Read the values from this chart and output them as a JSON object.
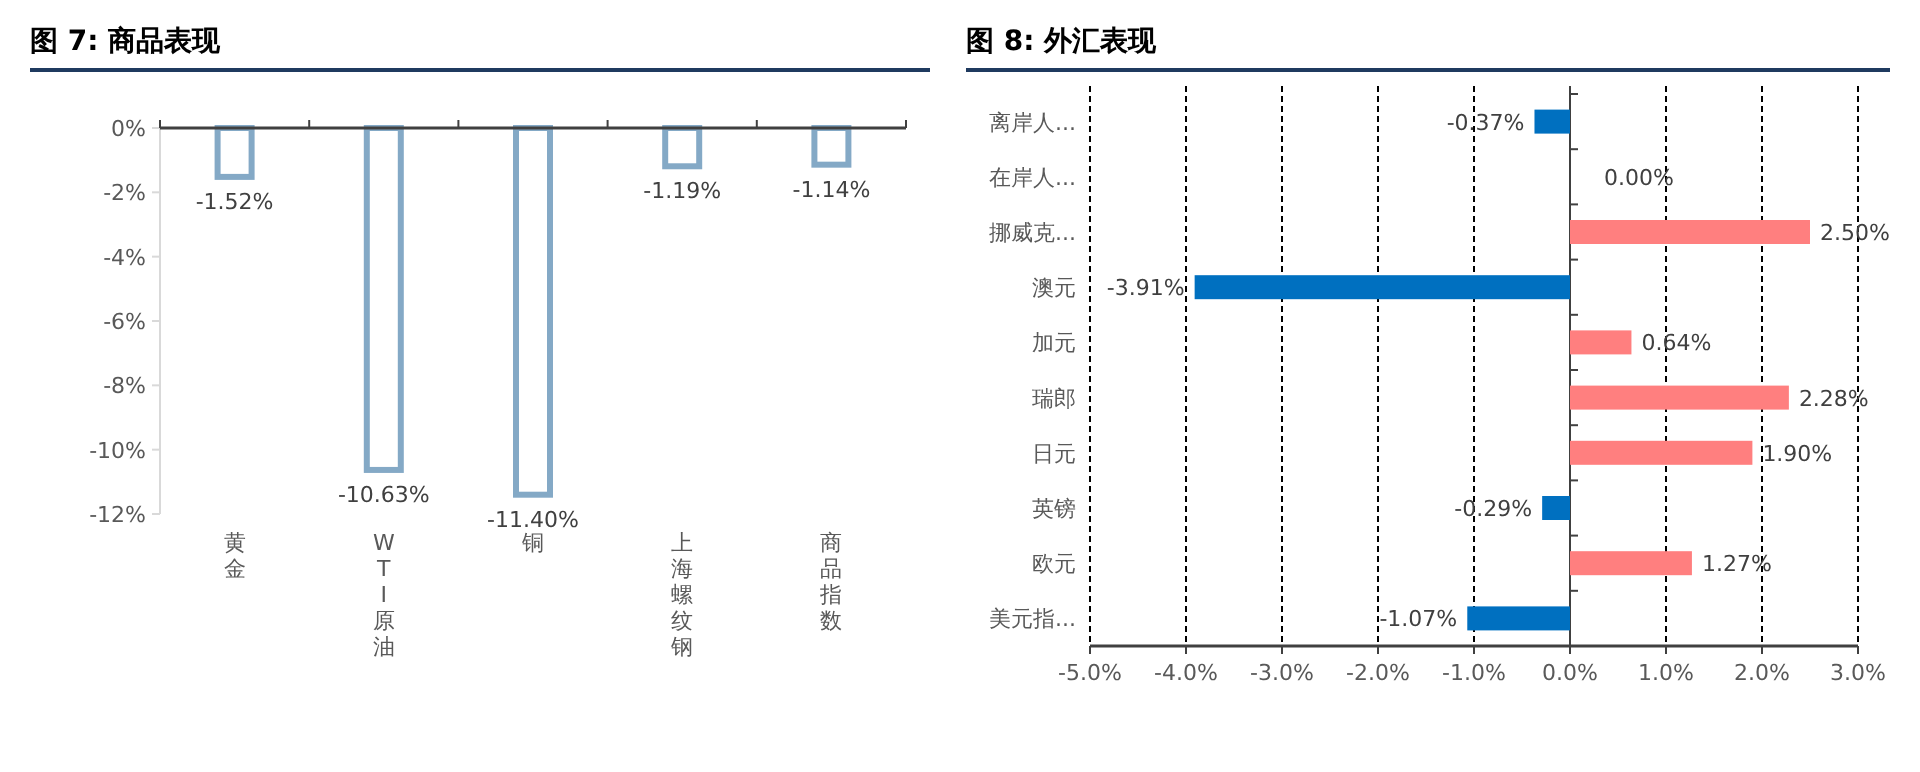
{
  "chart_data": [
    {
      "type": "bar",
      "title": "图 7: 商品表现",
      "categories": [
        "黄金",
        "WTI原油",
        "铜",
        "上海螺纹钢",
        "商品指数"
      ],
      "values": [
        -1.52,
        -10.63,
        -11.4,
        -1.19,
        -1.14
      ],
      "value_labels": [
        "-1.52%",
        "-10.63%",
        "-11.40%",
        "-1.19%",
        "-1.14%"
      ],
      "color": "#84a9c6",
      "ylim": [
        -12,
        0
      ],
      "yticks": [
        {
          "value": 0,
          "label": "0%"
        },
        {
          "value": -2,
          "label": "-2%"
        },
        {
          "value": -4,
          "label": "-4%"
        },
        {
          "value": -6,
          "label": "-6%"
        },
        {
          "value": -8,
          "label": "-8%"
        },
        {
          "value": -10,
          "label": "-10%"
        },
        {
          "value": -12,
          "label": "-12%"
        }
      ]
    },
    {
      "type": "bar",
      "title": "图 8: 外汇表现",
      "orientation": "horizontal",
      "grid": "x",
      "categories": [
        "离岸人...",
        "在岸人...",
        "挪威克...",
        "澳元",
        "加元",
        "瑞郎",
        "日元",
        "英镑",
        "欧元",
        "美元指..."
      ],
      "values": [
        -0.37,
        0.0,
        2.5,
        -3.91,
        0.64,
        2.28,
        1.9,
        -0.29,
        1.27,
        -1.07
      ],
      "value_labels": [
        "-0.37%",
        "0.00%",
        "2.50%",
        "-3.91%",
        "0.64%",
        "2.28%",
        "1.90%",
        "-0.29%",
        "1.27%",
        "-1.07%"
      ],
      "colors": [
        "#0070c0",
        "#ff7f7f",
        "#ff7f7f",
        "#0070c0",
        "#ff7f7f",
        "#ff7f7f",
        "#ff7f7f",
        "#0070c0",
        "#ff7f7f",
        "#0070c0"
      ],
      "xlim": [
        -5,
        3
      ],
      "xticks": [
        {
          "value": -5,
          "label": "-5.0%"
        },
        {
          "value": -4,
          "label": "-4.0%"
        },
        {
          "value": -3,
          "label": "-3.0%"
        },
        {
          "value": -2,
          "label": "-2.0%"
        },
        {
          "value": -1,
          "label": "-1.0%"
        },
        {
          "value": 0,
          "label": "0.0%"
        },
        {
          "value": 1,
          "label": "1.0%"
        },
        {
          "value": 2,
          "label": "2.0%"
        },
        {
          "value": 3,
          "label": "3.0%"
        }
      ]
    }
  ]
}
